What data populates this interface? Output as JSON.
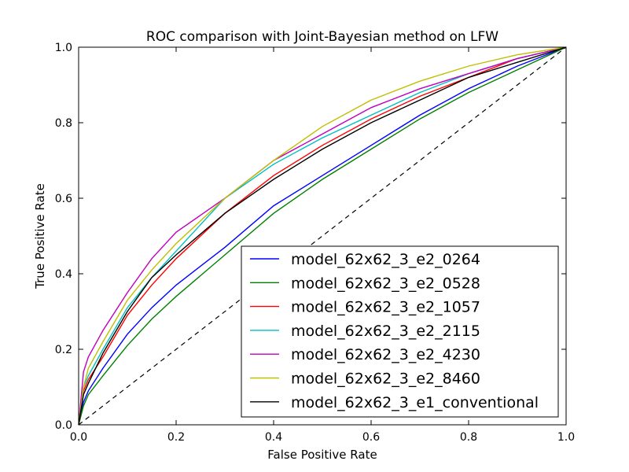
{
  "chart_data": {
    "type": "line",
    "title": "ROC comparison with Joint-Bayesian method on LFW",
    "xlabel": "False Positive Rate",
    "ylabel": "True Positive Rate",
    "xlim": [
      0.0,
      1.0
    ],
    "ylim": [
      0.0,
      1.0
    ],
    "xticks": [
      "0.0",
      "0.2",
      "0.4",
      "0.6",
      "0.8",
      "1.0"
    ],
    "yticks": [
      "0.0",
      "0.2",
      "0.4",
      "0.6",
      "0.8",
      "1.0"
    ],
    "grid": false,
    "legend_position": "lower-right",
    "x": [
      0.0,
      0.01,
      0.02,
      0.05,
      0.1,
      0.15,
      0.2,
      0.3,
      0.4,
      0.5,
      0.6,
      0.7,
      0.8,
      0.9,
      1.0
    ],
    "series": [
      {
        "name": "model_62x62_3_e2_0264",
        "color": "#0000ff",
        "values": [
          0.0,
          0.06,
          0.09,
          0.15,
          0.24,
          0.31,
          0.37,
          0.47,
          0.58,
          0.66,
          0.74,
          0.82,
          0.89,
          0.95,
          1.0
        ]
      },
      {
        "name": "model_62x62_3_e2_0528",
        "color": "#008000",
        "values": [
          0.0,
          0.05,
          0.08,
          0.13,
          0.21,
          0.28,
          0.34,
          0.45,
          0.56,
          0.65,
          0.73,
          0.81,
          0.88,
          0.94,
          1.0
        ]
      },
      {
        "name": "model_62x62_3_e2_1057",
        "color": "#ff0000",
        "values": [
          0.0,
          0.09,
          0.12,
          0.18,
          0.29,
          0.37,
          0.44,
          0.56,
          0.66,
          0.74,
          0.81,
          0.87,
          0.92,
          0.97,
          1.0
        ]
      },
      {
        "name": "model_62x62_3_e2_2115",
        "color": "#00bfbf",
        "values": [
          0.0,
          0.1,
          0.13,
          0.2,
          0.31,
          0.39,
          0.46,
          0.6,
          0.69,
          0.76,
          0.82,
          0.88,
          0.93,
          0.97,
          1.0
        ]
      },
      {
        "name": "model_62x62_3_e2_4230",
        "color": "#bf00bf",
        "values": [
          0.0,
          0.14,
          0.18,
          0.25,
          0.35,
          0.44,
          0.51,
          0.6,
          0.7,
          0.77,
          0.84,
          0.89,
          0.93,
          0.97,
          1.0
        ]
      },
      {
        "name": "model_62x62_3_e2_8460",
        "color": "#bfbf00",
        "values": [
          0.0,
          0.1,
          0.15,
          0.22,
          0.33,
          0.41,
          0.48,
          0.6,
          0.7,
          0.79,
          0.86,
          0.91,
          0.95,
          0.98,
          1.0
        ]
      },
      {
        "name": "model_62x62_3_e1_conventional",
        "color": "#000000",
        "values": [
          0.0,
          0.08,
          0.11,
          0.19,
          0.3,
          0.39,
          0.45,
          0.56,
          0.65,
          0.73,
          0.8,
          0.86,
          0.92,
          0.96,
          1.0
        ]
      }
    ],
    "reference_line": {
      "style": "dashed",
      "color": "#000000",
      "x": [
        0.0,
        1.0
      ],
      "y": [
        0.0,
        1.0
      ]
    }
  }
}
